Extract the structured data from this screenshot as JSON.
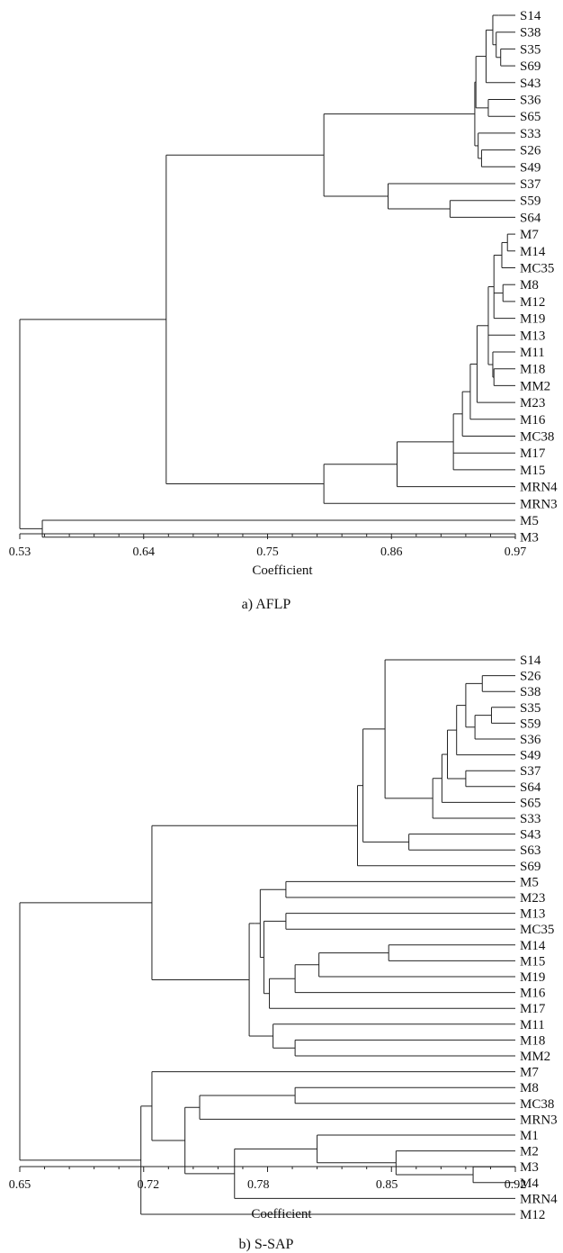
{
  "panels": [
    {
      "id": "aflp",
      "caption": "a) AFLP",
      "axis_title": "Coefficient",
      "ticks": [
        0.53,
        0.64,
        0.75,
        0.86,
        0.97
      ],
      "tick_labels": [
        "0.53",
        "0.64",
        "0.75",
        "0.86",
        "0.97"
      ],
      "range": [
        0.53,
        0.97
      ],
      "leaves": [
        "S14",
        "S38",
        "S35",
        "S69",
        "S43",
        "S36",
        "S65",
        "S33",
        "S26",
        "S49",
        "S37",
        "S59",
        "S64",
        "M7",
        "M14",
        "MC35",
        "M8",
        "M12",
        "M19",
        "M13",
        "M11",
        "M18",
        "MM2",
        "M23",
        "M16",
        "MC38",
        "M17",
        "M15",
        "MRN4",
        "MRN3",
        "M5",
        "M3"
      ],
      "tree": {
        "h": 0.53,
        "c": [
          {
            "h": 0.66,
            "c": [
              {
                "h": 0.8,
                "c": [
                  {
                    "h": 0.934,
                    "c": [
                      {
                        "h": 0.935,
                        "c": [
                          {
                            "h": 0.944,
                            "c": [
                              {
                                "h": 0.95,
                                "c": [
                                  {
                                    "h": 0.955,
                                    "c": [
                                      "S14"
                                    ]
                                  },
                                  {
                                    "h": 0.953,
                                    "c": [
                                      "S38",
                                      {
                                        "h": 0.957,
                                        "c": [
                                          "S35",
                                          "S69"
                                        ]
                                      }
                                    ]
                                  }
                                ]
                              },
                              "S43"
                            ]
                          },
                          {
                            "h": 0.946,
                            "c": [
                              "S36",
                              "S65"
                            ]
                          }
                        ]
                      },
                      {
                        "h": 0.937,
                        "c": [
                          "S33",
                          {
                            "h": 0.94,
                            "c": [
                              "S26",
                              "S49"
                            ]
                          }
                        ]
                      }
                    ]
                  },
                  {
                    "h": 0.857,
                    "c": [
                      "S37",
                      {
                        "h": 0.912,
                        "c": [
                          "S59",
                          "S64"
                        ]
                      }
                    ]
                  }
                ]
              },
              {
                "h": 0.8,
                "c": [
                  {
                    "h": 0.865,
                    "c": [
                      {
                        "h": 0.915,
                        "c": [
                          {
                            "h": 0.923,
                            "c": [
                              {
                                "h": 0.93,
                                "c": [
                                  {
                                    "h": 0.936,
                                    "c": [
                                      {
                                        "h": 0.946,
                                        "c": [
                                          {
                                            "h": 0.951,
                                            "c": [
                                              {
                                                "h": 0.958,
                                                "c": [
                                                  {
                                                    "h": 0.963,
                                                    "c": [
                                                      "M7",
                                                      "M14"
                                                    ]
                                                  },
                                                  "MC35"
                                                ]
                                              },
                                              {
                                                "h": 0.959,
                                                "c": [
                                                  "M8",
                                                  "M12"
                                                ]
                                              },
                                              "M19"
                                            ]
                                          },
                                          "M13",
                                          {
                                            "h": 0.95,
                                            "c": [
                                              "M11",
                                              {
                                                "h": 0.951,
                                                "c": [
                                                  "M18",
                                                  "MM2"
                                                ]
                                              }
                                            ]
                                          }
                                        ]
                                      },
                                      "M23"
                                    ]
                                  },
                                  "M16"
                                ]
                              },
                              "MC38"
                            ]
                          },
                          "M17",
                          "M15"
                        ]
                      },
                      "MRN4"
                    ]
                  },
                  "MRN3"
                ]
              }
            ]
          },
          {
            "h": 0.55,
            "c": [
              "M5",
              "M3"
            ]
          }
        ]
      }
    },
    {
      "id": "ssap",
      "caption": "b) S-SAP",
      "axis_title": "Coefficient",
      "ticks": [
        0.65,
        0.72,
        0.78,
        0.85,
        0.92
      ],
      "tick_labels": [
        "0.65",
        "0.72",
        "0.78",
        "0.85",
        "0.92"
      ],
      "range": [
        0.65,
        0.92
      ],
      "leaves": [
        "S14",
        "S26",
        "S38",
        "S35",
        "S59",
        "S36",
        "S49",
        "S37",
        "S64",
        "S65",
        "S33",
        "S43",
        "S63",
        "S69",
        "M5",
        "M23",
        "M13",
        "MC35",
        "M14",
        "M15",
        "M19",
        "M16",
        "M17",
        "M11",
        "M18",
        "MM2",
        "M7",
        "M8",
        "MC38",
        "MRN3",
        "M1",
        "M2",
        "M3",
        "M4",
        "MRN4",
        "M12"
      ],
      "tree": {
        "h": 0.65,
        "c": [
          {
            "h": 0.722,
            "c": [
              {
                "h": 0.834,
                "c": [
                  {
                    "h": 0.837,
                    "c": [
                      {
                        "h": 0.849,
                        "c": [
                          "S14",
                          {
                            "h": 0.875,
                            "c": [
                              {
                                "h": 0.88,
                                "c": [
                                  {
                                    "h": 0.883,
                                    "c": [
                                      {
                                        "h": 0.888,
                                        "c": [
                                          {
                                            "h": 0.893,
                                            "c": [
                                              {
                                                "h": 0.902,
                                                "c": [
                                                  "S26",
                                                  "S38"
                                                ]
                                              },
                                              {
                                                "h": 0.898,
                                                "c": [
                                                  {
                                                    "h": 0.907,
                                                    "c": [
                                                      "S35",
                                                      "S59"
                                                    ]
                                                  },
                                                  "S36"
                                                ]
                                              }
                                            ]
                                          },
                                          "S49"
                                        ]
                                      },
                                      {
                                        "h": 0.893,
                                        "c": [
                                          "S37",
                                          "S64"
                                        ]
                                      }
                                    ]
                                  },
                                  "S65"
                                ]
                              },
                              "S33"
                            ]
                          }
                        ]
                      },
                      {
                        "h": 0.862,
                        "c": [
                          "S43",
                          "S63"
                        ]
                      }
                    ]
                  },
                  "S69"
                ]
              },
              {
                "h": 0.775,
                "c": [
                  {
                    "h": 0.778,
                    "c": [
                      {
                        "h": 0.781,
                        "c": [
                          {
                            "h": 0.795,
                            "c": [
                              "M5",
                              "M23"
                            ]
                          },
                          {
                            "h": 0.783,
                            "c": [
                              {
                                "h": 0.795,
                                "c": [
                                  "M13",
                                  "MC35"
                                ]
                              },
                              {
                                "h": 0.786,
                                "c": [
                                  {
                                    "h": 0.8,
                                    "c": [
                                      {
                                        "h": 0.813,
                                        "c": [
                                          {
                                            "h": 0.851,
                                            "c": [
                                              "M14",
                                              "M15"
                                            ]
                                          },
                                          "M19"
                                        ]
                                      },
                                      "M16"
                                    ]
                                  },
                                  "M17"
                                ]
                              }
                            ]
                          }
                        ]
                      }
                    ]
                  },
                  {
                    "h": 0.788,
                    "c": [
                      "M11",
                      {
                        "h": 0.8,
                        "c": [
                          "M18",
                          "MM2"
                        ]
                      }
                    ]
                  }
                ]
              }
            ]
          },
          {
            "h": 0.716,
            "c": [
              {
                "h": 0.722,
                "c": [
                  {
                    "h": 0.722,
                    "c": [
                      "M7"
                    ]
                  },
                  {
                    "h": 0.74,
                    "c": [
                      {
                        "h": 0.748,
                        "c": [
                          {
                            "h": 0.8,
                            "c": [
                              "M8",
                              "MC38"
                            ]
                          },
                          "MRN3"
                        ]
                      },
                      {
                        "h": 0.767,
                        "c": [
                          {
                            "h": 0.812,
                            "c": [
                              "M1",
                              {
                                "h": 0.855,
                                "c": [
                                  "M2",
                                  {
                                    "h": 0.897,
                                    "c": [
                                      "M3",
                                      "M4"
                                    ]
                                  }
                                ]
                              }
                            ]
                          },
                          "MRN4"
                        ]
                      }
                    ]
                  }
                ]
              },
              "M12"
            ]
          }
        ]
      }
    }
  ]
}
